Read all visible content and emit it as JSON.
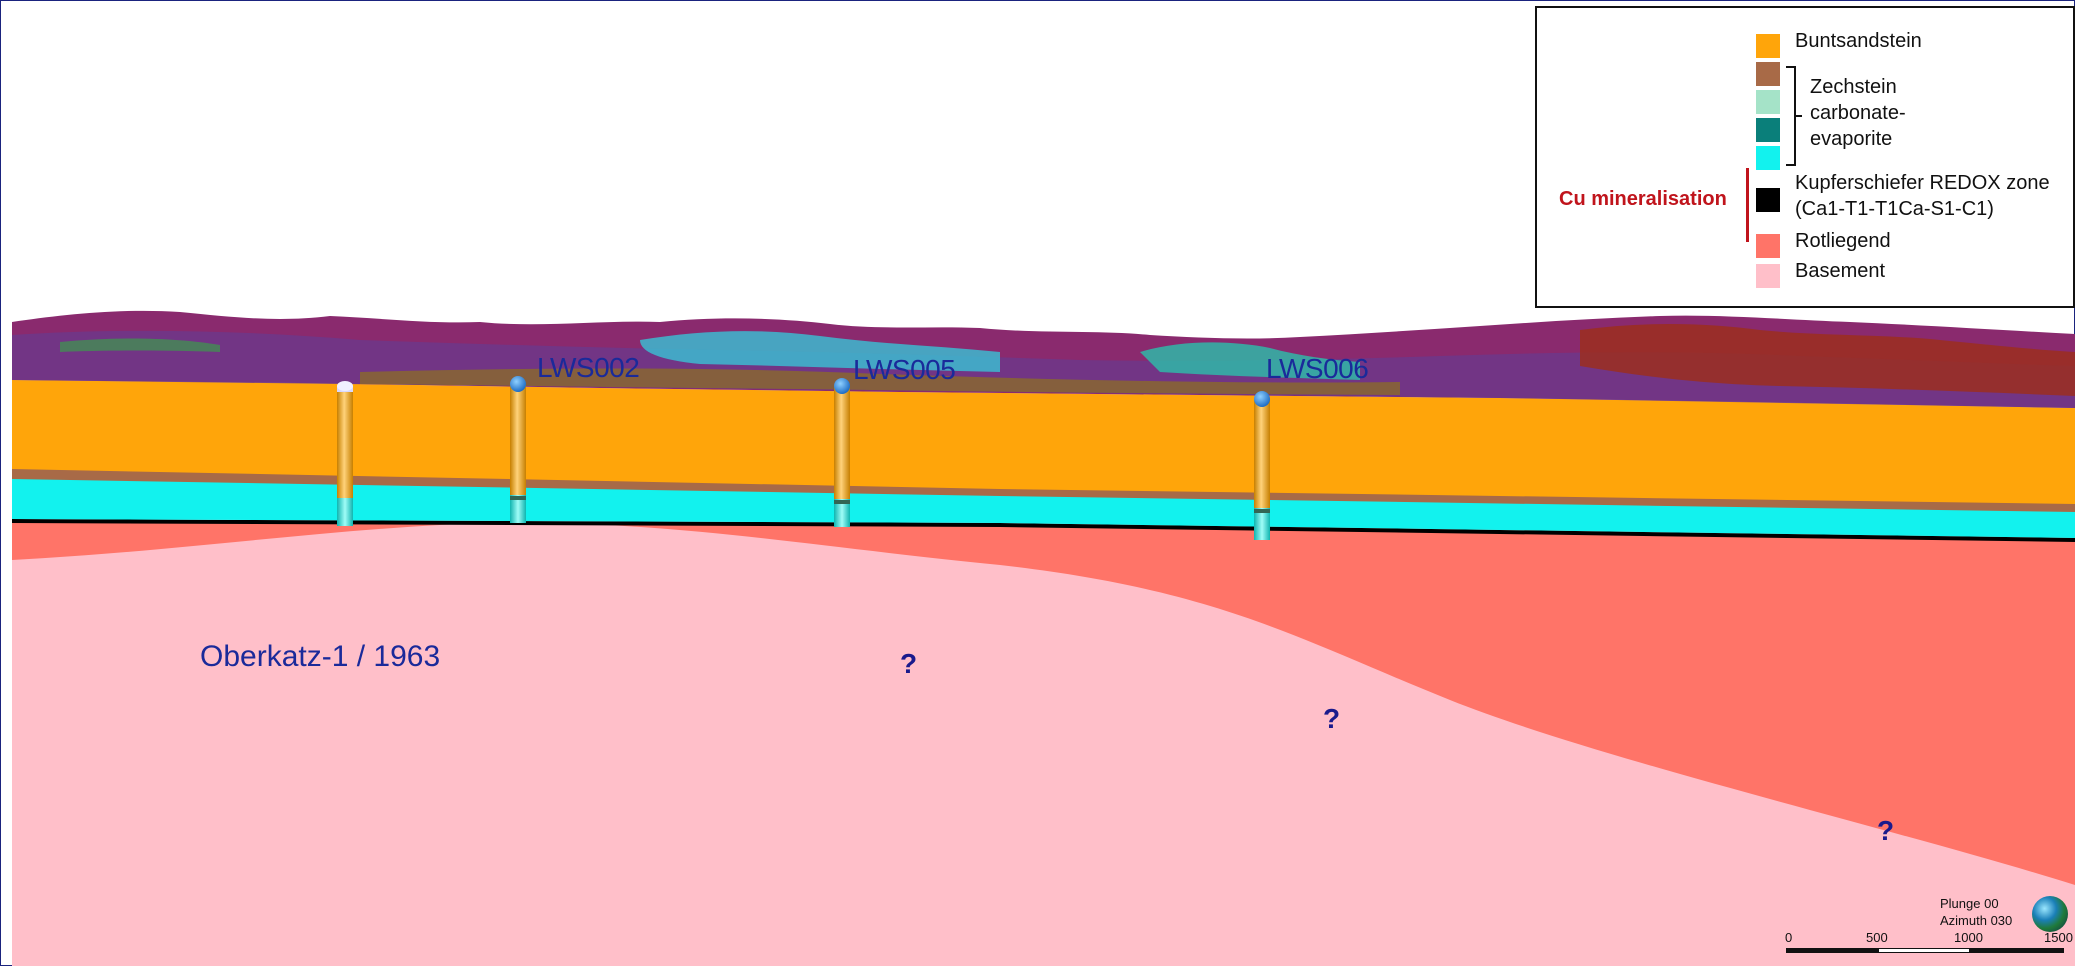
{
  "wells": [
    {
      "name": "LWS002"
    },
    {
      "name": "LWS005"
    },
    {
      "name": "LWS006"
    }
  ],
  "historic_well": "Oberkatz-1 / 1963",
  "uncertainty_marks": [
    "?",
    "?",
    "?"
  ],
  "legend": {
    "items": [
      {
        "label": "Buntsandstein",
        "color": "#FFA50A"
      },
      {
        "label": "",
        "color": "#A86A47"
      },
      {
        "label": "",
        "color": "#A5E3C8"
      },
      {
        "label": "",
        "color": "#0A7F7A"
      },
      {
        "label": "",
        "color": "#12F2EE"
      },
      {
        "label": "Kupferschiefer REDOX zone\n(Ca1-T1-T1Ca-S1-C1)",
        "color": "#000000"
      },
      {
        "label": "Rotliegend",
        "color": "#FF7468"
      },
      {
        "label": "Basement",
        "color": "#FFBFC9"
      }
    ],
    "zechstein_label": "Zechstein\ncarbonate-\nevaporite",
    "cu_label": "Cu mineralisation"
  },
  "orientation": {
    "plunge": "Plunge 00",
    "azimuth": "Azimuth 030"
  },
  "scale": {
    "labels": [
      "0",
      "500",
      "1000",
      "1500"
    ]
  },
  "colors": {
    "text_blue": "#1a2a9a",
    "cu_red": "#c0141c"
  }
}
